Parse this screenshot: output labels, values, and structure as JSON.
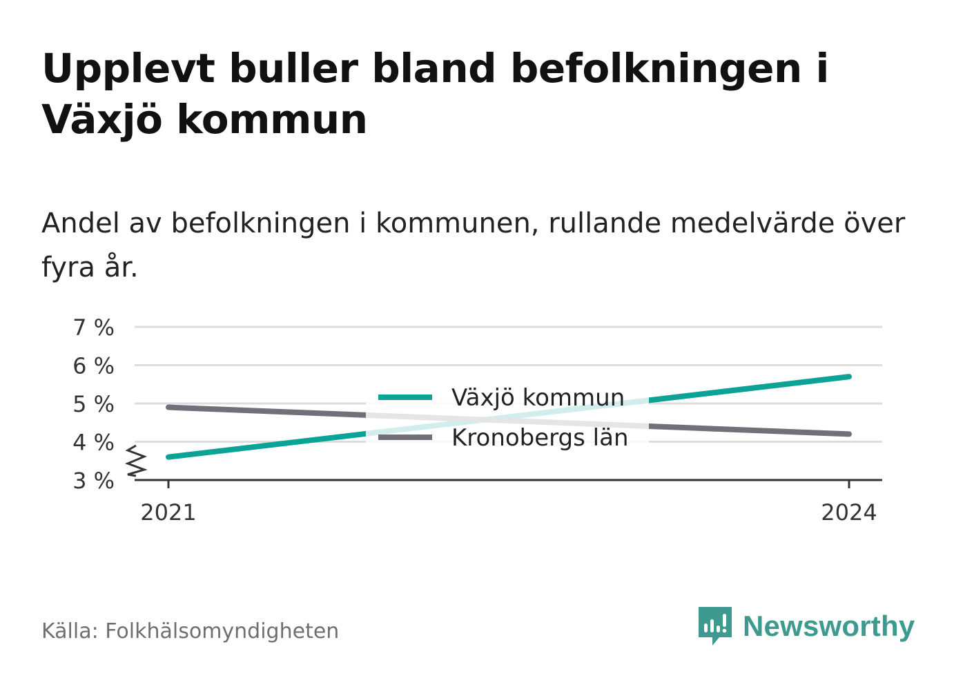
{
  "title": "Upplevt buller bland befolkningen i Växjö kommun",
  "subtitle": "Andel av befolkningen i kommunen, rullande medelvärde över fyra år.",
  "source": "Källa: Folkhälsomyndigheten",
  "brand": {
    "name": "Newsworthy",
    "icon": "newsworthy-logo-icon",
    "color": "#3e9a8e"
  },
  "colors": {
    "vaxjo": "#0aa396",
    "kronoberg": "#717078",
    "grid": "#dddddd",
    "axis": "#333333"
  },
  "chart_data": {
    "type": "line",
    "x": [
      "2021",
      "2024"
    ],
    "series": [
      {
        "name": "Växjö kommun",
        "values": [
          3.6,
          5.7
        ],
        "color": "#0aa396"
      },
      {
        "name": "Kronobergs län",
        "values": [
          4.9,
          4.2
        ],
        "color": "#717078"
      }
    ],
    "yticks": [
      "3 %",
      "4 %",
      "5 %",
      "6 %",
      "7 %"
    ],
    "ylim": [
      3,
      7
    ],
    "y_axis_break": true,
    "grid": true,
    "legend_position": "center"
  }
}
